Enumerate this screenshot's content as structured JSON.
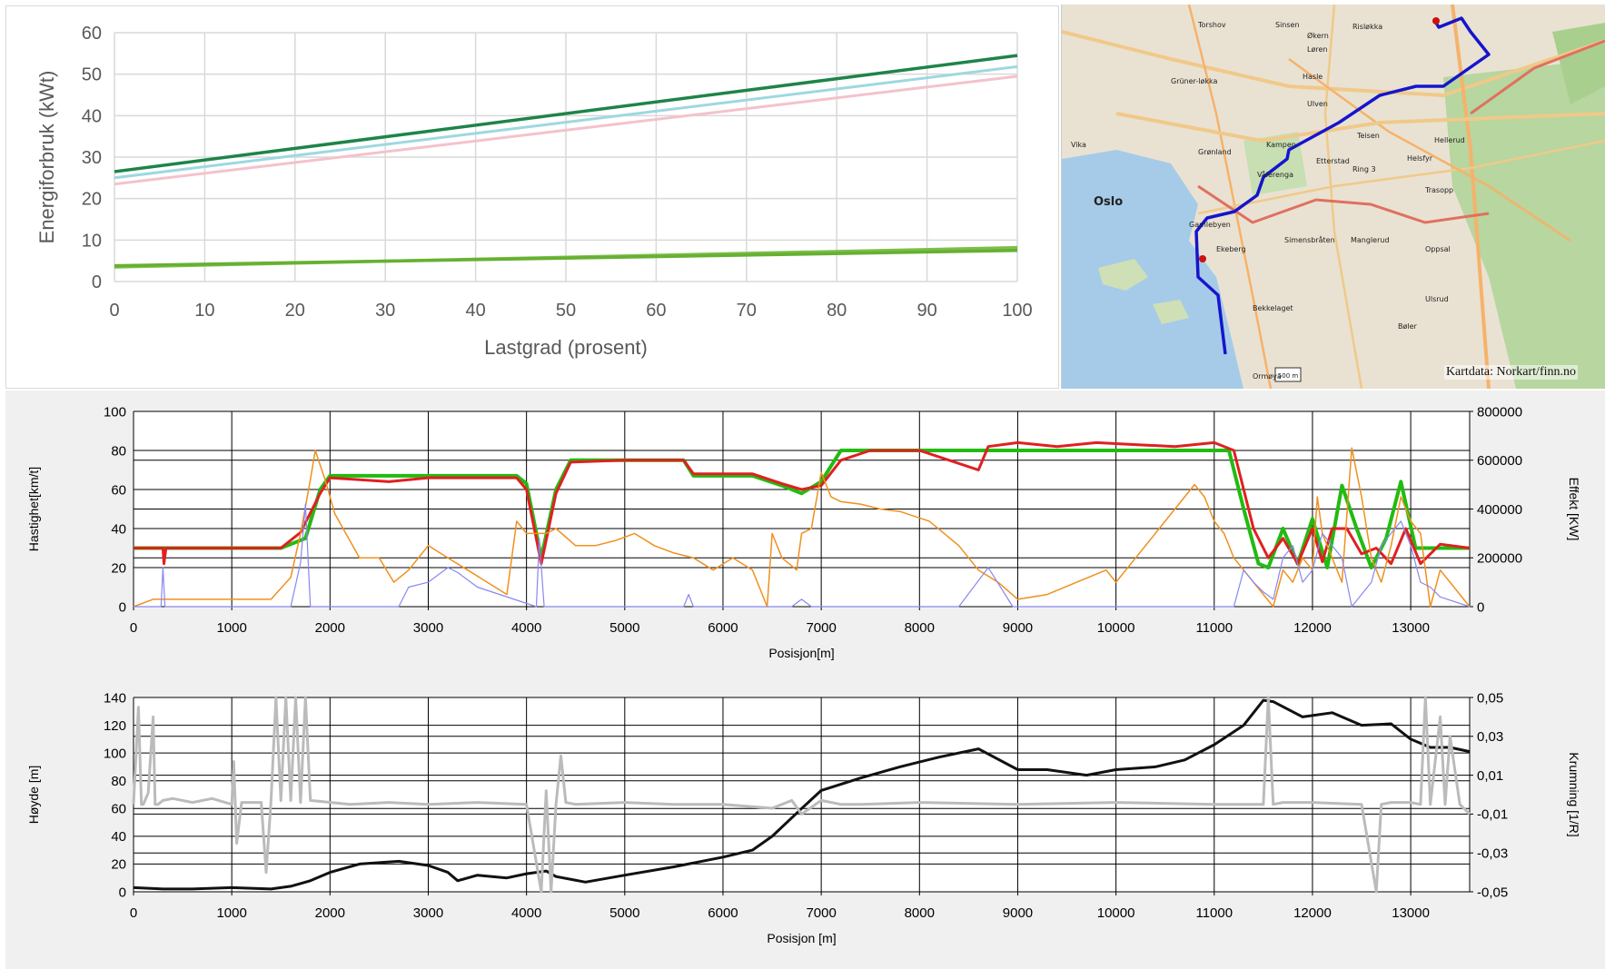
{
  "chart_data": [
    {
      "type": "line",
      "xlabel": "Lastgrad (prosent)",
      "ylabel": "Energiforbruk (kWt)",
      "xlim": [
        0,
        100
      ],
      "ylim": [
        0,
        60
      ],
      "xticks": [
        "0",
        "10",
        "20",
        "30",
        "40",
        "50",
        "60",
        "70",
        "80",
        "90",
        "100"
      ],
      "yticks": [
        "0",
        "10",
        "20",
        "30",
        "40",
        "50",
        "60"
      ],
      "grid": true,
      "series": [
        {
          "color": "#1e8449",
          "x": [
            0,
            100
          ],
          "y": [
            26.5,
            54.5
          ],
          "width": 3.5
        },
        {
          "color": "#9ed8e0",
          "x": [
            0,
            100
          ],
          "y": [
            25.0,
            51.8
          ],
          "width": 3
        },
        {
          "color": "#f4c2cc",
          "x": [
            0,
            100
          ],
          "y": [
            23.5,
            49.5
          ],
          "width": 3
        },
        {
          "color": "#7dbf4a",
          "x": [
            0,
            100
          ],
          "y": [
            3.5,
            8.2
          ],
          "width": 3.5
        },
        {
          "color": "#66b032",
          "x": [
            0,
            100
          ],
          "y": [
            3.8,
            7.5
          ],
          "width": 3.5
        }
      ]
    },
    {
      "type": "line",
      "xlabel": "Posisjon[m]",
      "ylabel": "Hastighet[km/t]",
      "y2label": "Effekt [KW]",
      "xlim": [
        0,
        13600
      ],
      "ylim": [
        0,
        100
      ],
      "y2lim": [
        0,
        800000
      ],
      "xticks": [
        "0",
        "1000",
        "2000",
        "3000",
        "4000",
        "5000",
        "6000",
        "7000",
        "8000",
        "9000",
        "10000",
        "11000",
        "12000",
        "13000"
      ],
      "yticks": [
        "0",
        "20",
        "40",
        "60",
        "80",
        "100"
      ],
      "y2ticks": [
        "0",
        "200000",
        "400000",
        "600000",
        "800000"
      ],
      "grid": true,
      "series": [
        {
          "color": "#22bb11",
          "axis": "y",
          "x": [
            0,
            1500,
            1750,
            1900,
            2000,
            3900,
            4000,
            4150,
            4300,
            4450,
            5600,
            5700,
            6300,
            6600,
            6800,
            7000,
            7100,
            7200,
            11150,
            11300,
            11450,
            11550,
            11700,
            11850,
            12000,
            12150,
            12300,
            12450,
            12600,
            12750,
            12900,
            13050,
            13200,
            13350,
            13600
          ],
          "y": [
            30,
            30,
            35,
            60,
            67,
            67,
            63,
            25,
            60,
            75,
            75,
            67,
            67,
            62,
            58,
            64,
            72,
            80,
            80,
            50,
            22,
            20,
            40,
            22,
            45,
            20,
            62,
            40,
            20,
            35,
            64,
            30,
            30,
            30,
            30
          ]
        },
        {
          "color": "#e02020",
          "axis": "y",
          "x": [
            0,
            300,
            310,
            330,
            1500,
            1700,
            1900,
            2000,
            2600,
            3000,
            3900,
            4000,
            4150,
            4300,
            4450,
            5000,
            5600,
            5700,
            6300,
            6600,
            6800,
            7000,
            7200,
            7500,
            8000,
            8600,
            8700,
            9000,
            9400,
            9800,
            10200,
            10600,
            11000,
            11200,
            11400,
            11550,
            11700,
            11850,
            12000,
            12100,
            12200,
            12350,
            12500,
            12650,
            12800,
            12950,
            13100,
            13300,
            13600
          ],
          "y": [
            30,
            30,
            22,
            30,
            30,
            38,
            58,
            66,
            64,
            66,
            66,
            60,
            22,
            58,
            74,
            75,
            75,
            68,
            68,
            63,
            60,
            62,
            75,
            80,
            80,
            70,
            82,
            84,
            82,
            84,
            83,
            82,
            84,
            80,
            40,
            25,
            35,
            22,
            40,
            23,
            40,
            40,
            27,
            30,
            22,
            40,
            22,
            32,
            30
          ]
        },
        {
          "color": "#f0901e",
          "axis": "y2",
          "x": [
            0,
            200,
            1400,
            1600,
            1700,
            1800,
            1850,
            1950,
            2050,
            2300,
            2500,
            2650,
            2800,
            3000,
            3200,
            3400,
            3600,
            3800,
            3900,
            4000,
            4100,
            4200,
            4300,
            4500,
            4700,
            4900,
            5100,
            5300,
            5500,
            5700,
            5900,
            6100,
            6300,
            6450,
            6500,
            6600,
            6750,
            6800,
            6900,
            7000,
            7100,
            7200,
            7400,
            7600,
            7800,
            8100,
            8400,
            8600,
            8800,
            9000,
            9300,
            9600,
            9900,
            10000,
            10200,
            10400,
            10600,
            10800,
            10900,
            11000,
            11100,
            11200,
            11300,
            11400,
            11500,
            11600,
            11700,
            11800,
            11900,
            12000,
            12050,
            12100,
            12200,
            12300,
            12400,
            12500,
            12600,
            12700,
            12800,
            12900,
            13000,
            13100,
            13200,
            13300,
            13600
          ],
          "y": [
            0,
            30000,
            30000,
            120000,
            300000,
            520000,
            640000,
            520000,
            380000,
            200000,
            200000,
            100000,
            150000,
            250000,
            200000,
            150000,
            100000,
            50000,
            350000,
            300000,
            300000,
            300000,
            320000,
            250000,
            250000,
            270000,
            300000,
            250000,
            220000,
            200000,
            150000,
            200000,
            150000,
            0,
            300000,
            200000,
            150000,
            300000,
            320000,
            550000,
            450000,
            430000,
            420000,
            400000,
            390000,
            350000,
            250000,
            150000,
            100000,
            30000,
            50000,
            100000,
            150000,
            100000,
            200000,
            300000,
            400000,
            500000,
            450000,
            350000,
            300000,
            200000,
            150000,
            100000,
            50000,
            0,
            150000,
            100000,
            200000,
            150000,
            450000,
            300000,
            200000,
            100000,
            650000,
            450000,
            200000,
            100000,
            250000,
            450000,
            350000,
            300000,
            0,
            150000,
            0
          ]
        },
        {
          "color": "#8888ee",
          "axis": "y2",
          "x": [
            0,
            280,
            300,
            320,
            350,
            1600,
            1700,
            1750,
            1800,
            2700,
            2800,
            3000,
            3200,
            3300,
            3500,
            4100,
            4130,
            4180,
            4300,
            4400,
            5600,
            5650,
            5700,
            5800,
            6700,
            6800,
            6900,
            7000,
            8400,
            8700,
            8950,
            9200,
            11200,
            11300,
            11400,
            11500,
            11600,
            11700,
            11800,
            11900,
            12000,
            12100,
            12300,
            12400,
            12600,
            12700,
            12800,
            12900,
            13000,
            13100,
            13200,
            13300,
            13600
          ],
          "y": [
            0,
            0,
            160000,
            0,
            0,
            0,
            180000,
            420000,
            0,
            0,
            80000,
            100000,
            160000,
            140000,
            80000,
            0,
            280000,
            0,
            0,
            0,
            0,
            50000,
            0,
            0,
            0,
            30000,
            0,
            0,
            0,
            160000,
            0,
            0,
            0,
            150000,
            100000,
            60000,
            30000,
            200000,
            250000,
            100000,
            150000,
            300000,
            200000,
            0,
            100000,
            250000,
            300000,
            350000,
            250000,
            100000,
            80000,
            40000,
            0
          ]
        }
      ]
    },
    {
      "type": "line",
      "xlabel": "Posisjon [m]",
      "ylabel": "Høyde [m]",
      "y2label": "Krumning [1/R]",
      "xlim": [
        0,
        13600
      ],
      "ylim": [
        0,
        140
      ],
      "y2lim": [
        -0.05,
        0.05
      ],
      "xticks": [
        "0",
        "1000",
        "2000",
        "3000",
        "4000",
        "5000",
        "6000",
        "7000",
        "8000",
        "9000",
        "10000",
        "11000",
        "12000",
        "13000"
      ],
      "yticks": [
        "0",
        "20",
        "40",
        "60",
        "80",
        "100",
        "120",
        "140"
      ],
      "y2ticks": [
        "-0,05",
        "-0,03",
        "-0,01",
        "0,01",
        "0,03",
        "0,05"
      ],
      "grid": true,
      "series": [
        {
          "color": "#111111",
          "axis": "y",
          "x": [
            0,
            300,
            600,
            1000,
            1400,
            1600,
            1800,
            2000,
            2300,
            2700,
            3000,
            3200,
            3300,
            3500,
            3800,
            4000,
            4200,
            4300,
            4600,
            5000,
            5500,
            6000,
            6300,
            6500,
            6800,
            7000,
            7400,
            7800,
            8200,
            8600,
            9000,
            9300,
            9700,
            10000,
            10400,
            10700,
            11000,
            11300,
            11500,
            11600,
            11900,
            12200,
            12500,
            12800,
            13000,
            13200,
            13400,
            13600
          ],
          "y": [
            3,
            2,
            2,
            3,
            2,
            4,
            8,
            14,
            20,
            22,
            19,
            14,
            8,
            12,
            10,
            13,
            15,
            11,
            7,
            12,
            18,
            25,
            30,
            40,
            60,
            73,
            82,
            90,
            97,
            103,
            88,
            88,
            84,
            88,
            90,
            95,
            106,
            120,
            138,
            137,
            126,
            129,
            120,
            121,
            110,
            104,
            104,
            101
          ]
        },
        {
          "color": "#bbbbbb",
          "axis": "y2",
          "x": [
            0,
            50,
            80,
            100,
            150,
            200,
            220,
            250,
            300,
            400,
            600,
            800,
            1000,
            1020,
            1050,
            1100,
            1300,
            1350,
            1400,
            1450,
            1500,
            1550,
            1600,
            1650,
            1700,
            1750,
            1800,
            2200,
            2600,
            3000,
            3500,
            4000,
            4150,
            4200,
            4250,
            4300,
            4350,
            4400,
            4500,
            5000,
            5500,
            6000,
            6500,
            6700,
            6800,
            7000,
            7200,
            7400,
            8000,
            9000,
            10000,
            11000,
            11500,
            11550,
            11600,
            11700,
            12000,
            12500,
            12650,
            12700,
            12800,
            13000,
            13100,
            13150,
            13200,
            13300,
            13350,
            13400,
            13500,
            13600
          ],
          "y": [
            -0.005,
            0.045,
            -0.005,
            -0.005,
            0.001,
            0.04,
            -0.005,
            -0.005,
            -0.003,
            -0.002,
            -0.004,
            -0.002,
            -0.005,
            0.017,
            -0.025,
            -0.004,
            -0.004,
            -0.04,
            -0.003,
            0.05,
            -0.003,
            0.05,
            -0.003,
            0.05,
            -0.004,
            0.05,
            -0.003,
            -0.005,
            -0.004,
            -0.005,
            -0.004,
            -0.005,
            -0.05,
            0.002,
            -0.05,
            -0.005,
            0.02,
            -0.004,
            -0.005,
            -0.004,
            -0.005,
            -0.005,
            -0.007,
            -0.003,
            -0.01,
            -0.003,
            -0.005,
            -0.005,
            -0.004,
            -0.005,
            -0.004,
            -0.005,
            -0.005,
            0.05,
            -0.005,
            -0.004,
            -0.004,
            -0.005,
            -0.05,
            -0.005,
            -0.004,
            -0.004,
            -0.005,
            0.05,
            -0.005,
            0.04,
            -0.005,
            0.03,
            -0.005,
            -0.01
          ]
        }
      ]
    }
  ],
  "map": {
    "credit": "Kartdata: Norkart/finn.no",
    "labels": [
      "Torshov",
      "Sinsen",
      "Risløkka",
      "Økern",
      "Løren",
      "Grüner-løkka",
      "Hasle",
      "Ulven",
      "Kampen",
      "Grønland",
      "Vika",
      "Oslo",
      "Vålerenga",
      "Etterstad",
      "Ring 3",
      "Helsfyr",
      "Teisen",
      "Hellerud",
      "Gamlebyen",
      "Ekeberg",
      "Simensbråten",
      "Manglerud",
      "Oppsal",
      "Trasopp",
      "Bekkelaget",
      "Ormøya",
      "Bøler",
      "Ulsrud"
    ],
    "scale": "500 m"
  }
}
